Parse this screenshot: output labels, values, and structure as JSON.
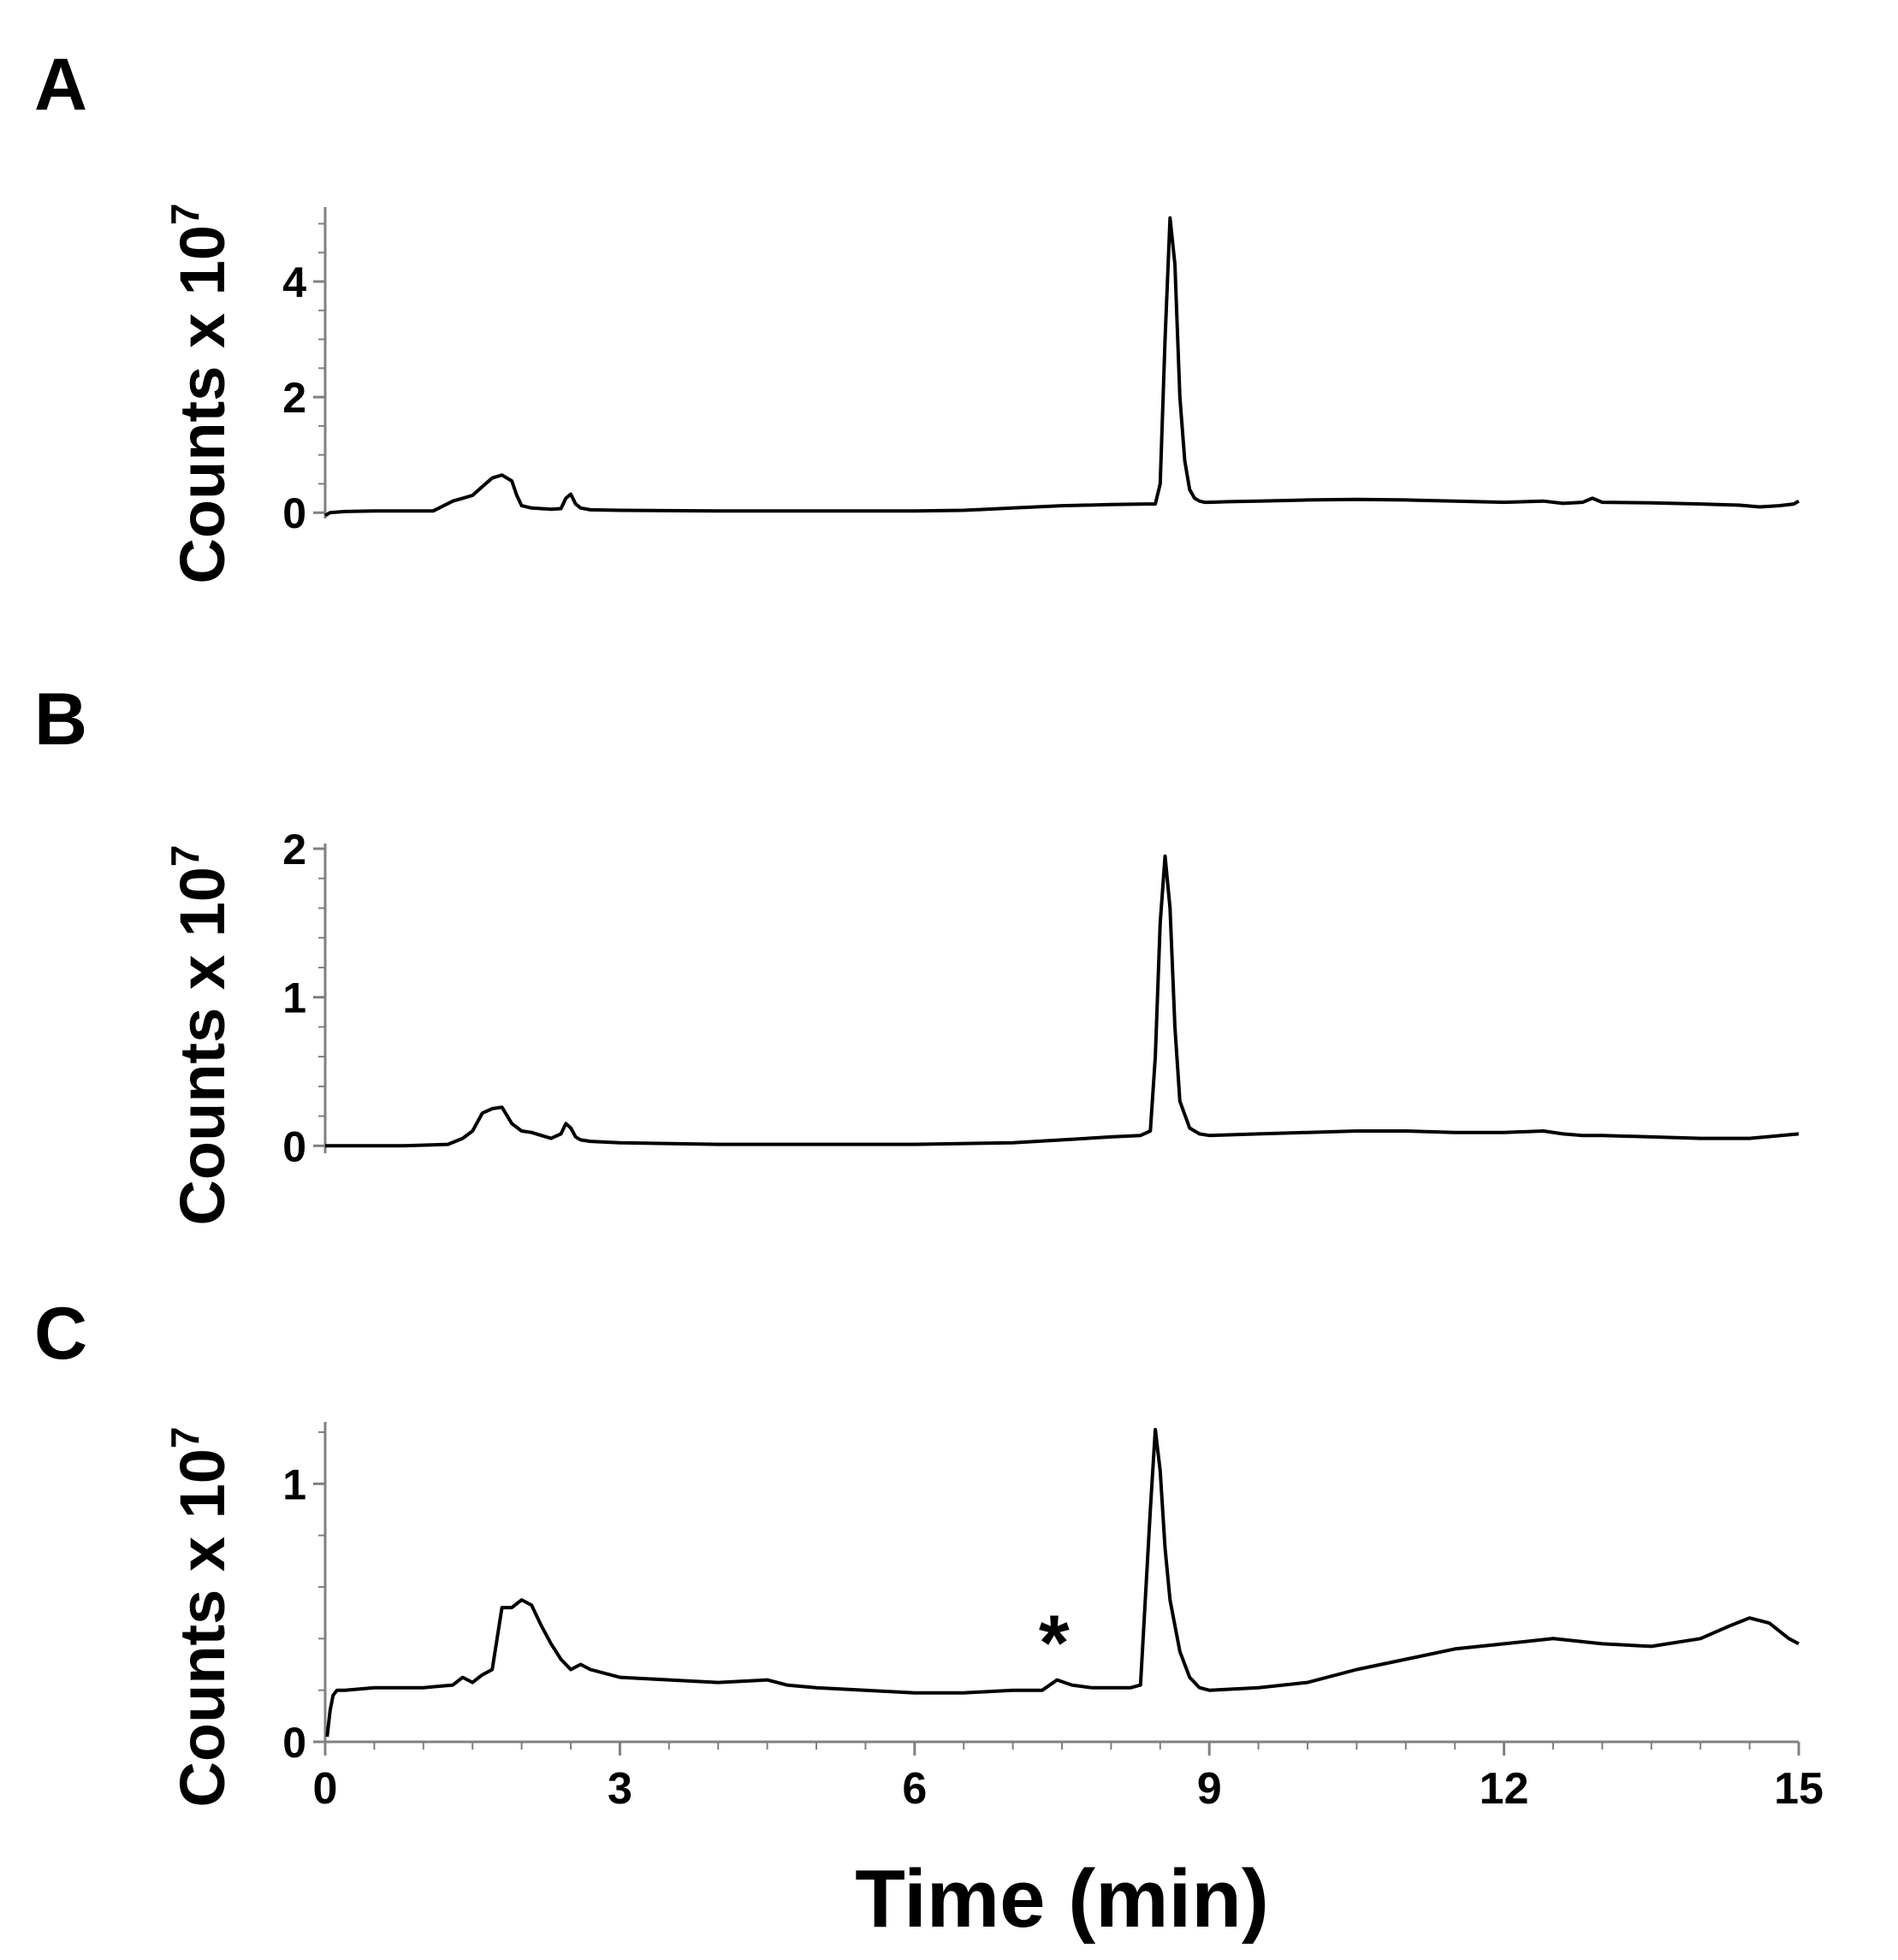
{
  "chart_data": [
    {
      "type": "line",
      "panel_label": "A",
      "ylabel": "Counts x 10",
      "ylabel_exponent": "7",
      "xlabel": "",
      "xlim": [
        0,
        15
      ],
      "ylim": [
        -0.1,
        5.2
      ],
      "yticks": [
        0,
        2,
        4
      ],
      "ytick_minor_step": 0.5,
      "xticks": [],
      "grid": false,
      "series": [
        {
          "x": [
            0,
            0.05,
            0.2,
            0.5,
            0.8,
            1.1,
            1.3,
            1.4,
            1.5,
            1.6,
            1.7,
            1.8,
            1.9,
            1.95,
            2.0,
            2.1,
            2.2,
            2.3,
            2.4,
            2.45,
            2.5,
            2.55,
            2.6,
            2.7,
            3.0,
            4.0,
            5.0,
            6.0,
            6.5,
            7.0,
            7.5,
            8.0,
            8.35,
            8.45,
            8.5,
            8.55,
            8.6,
            8.65,
            8.7,
            8.75,
            8.8,
            8.85,
            8.9,
            8.95,
            9.0,
            9.2,
            9.5,
            10.0,
            10.5,
            11.0,
            11.5,
            12.0,
            12.4,
            12.6,
            12.8,
            12.9,
            13.0,
            13.5,
            14.0,
            14.4,
            14.6,
            14.8,
            14.95,
            15.0
          ],
          "y": [
            -0.05,
            0.0,
            0.02,
            0.03,
            0.03,
            0.03,
            0.2,
            0.25,
            0.3,
            0.45,
            0.6,
            0.65,
            0.55,
            0.3,
            0.12,
            0.08,
            0.07,
            0.06,
            0.07,
            0.25,
            0.32,
            0.15,
            0.08,
            0.05,
            0.04,
            0.03,
            0.03,
            0.03,
            0.04,
            0.08,
            0.12,
            0.14,
            0.15,
            0.15,
            0.5,
            3.0,
            5.1,
            4.3,
            2.0,
            0.9,
            0.4,
            0.25,
            0.2,
            0.18,
            0.18,
            0.19,
            0.2,
            0.22,
            0.23,
            0.22,
            0.2,
            0.18,
            0.2,
            0.16,
            0.18,
            0.25,
            0.18,
            0.17,
            0.15,
            0.13,
            0.1,
            0.12,
            0.15,
            0.2
          ]
        }
      ]
    },
    {
      "type": "line",
      "panel_label": "B",
      "ylabel": "Counts x 10",
      "ylabel_exponent": "7",
      "xlabel": "",
      "xlim": [
        0,
        15
      ],
      "ylim": [
        -0.05,
        2.0
      ],
      "yticks": [
        0,
        1,
        2
      ],
      "ytick_minor_step": 0.2,
      "xticks": [],
      "grid": false,
      "series": [
        {
          "x": [
            0,
            0.3,
            0.8,
            1.25,
            1.4,
            1.5,
            1.6,
            1.7,
            1.8,
            1.9,
            2.0,
            2.1,
            2.2,
            2.3,
            2.4,
            2.45,
            2.5,
            2.55,
            2.6,
            2.7,
            3.0,
            4.0,
            5.0,
            6.0,
            7.0,
            7.5,
            8.0,
            8.3,
            8.4,
            8.45,
            8.5,
            8.55,
            8.6,
            8.65,
            8.7,
            8.8,
            8.9,
            9.0,
            9.5,
            10.0,
            10.5,
            11.0,
            11.5,
            12.0,
            12.4,
            12.6,
            12.8,
            13.0,
            13.5,
            14.0,
            14.5,
            15.0
          ],
          "y": [
            0.0,
            0.0,
            0.0,
            0.01,
            0.05,
            0.1,
            0.22,
            0.25,
            0.26,
            0.15,
            0.1,
            0.09,
            0.07,
            0.05,
            0.08,
            0.15,
            0.12,
            0.06,
            0.04,
            0.03,
            0.02,
            0.01,
            0.01,
            0.01,
            0.02,
            0.04,
            0.06,
            0.07,
            0.1,
            0.6,
            1.5,
            1.95,
            1.6,
            0.8,
            0.3,
            0.12,
            0.08,
            0.07,
            0.08,
            0.09,
            0.1,
            0.1,
            0.09,
            0.09,
            0.1,
            0.08,
            0.07,
            0.07,
            0.06,
            0.05,
            0.05,
            0.08
          ]
        }
      ]
    },
    {
      "type": "line",
      "panel_label": "C",
      "ylabel": "Counts x 10",
      "ylabel_exponent": "7",
      "xlabel": "Time (min)",
      "xlim": [
        0,
        15
      ],
      "ylim": [
        0,
        1.22
      ],
      "yticks": [
        0,
        1
      ],
      "ytick_minor_step": 0.2,
      "xticks": [
        0,
        3,
        6,
        9,
        12,
        15
      ],
      "xtick_minor_step": 0.5,
      "grid": false,
      "annotations": [
        {
          "text": "*",
          "x": 7.42,
          "y": 0.245
        }
      ],
      "series": [
        {
          "x": [
            0.02,
            0.05,
            0.08,
            0.12,
            0.2,
            0.5,
            1.0,
            1.3,
            1.4,
            1.5,
            1.6,
            1.7,
            1.75,
            1.8,
            1.9,
            2.0,
            2.1,
            2.2,
            2.3,
            2.4,
            2.5,
            2.6,
            2.7,
            3.0,
            3.5,
            4.0,
            4.5,
            4.7,
            5.0,
            5.5,
            6.0,
            6.5,
            7.0,
            7.3,
            7.45,
            7.6,
            7.8,
            8.0,
            8.2,
            8.3,
            8.4,
            8.45,
            8.5,
            8.55,
            8.6,
            8.7,
            8.8,
            8.9,
            9.0,
            9.5,
            10.0,
            10.5,
            11.0,
            11.5,
            12.0,
            12.5,
            13.0,
            13.5,
            14.0,
            14.3,
            14.5,
            14.7,
            14.9,
            15.0
          ],
          "y": [
            0.02,
            0.12,
            0.18,
            0.2,
            0.2,
            0.21,
            0.21,
            0.22,
            0.25,
            0.23,
            0.26,
            0.28,
            0.4,
            0.52,
            0.52,
            0.55,
            0.53,
            0.45,
            0.38,
            0.32,
            0.28,
            0.3,
            0.28,
            0.25,
            0.24,
            0.23,
            0.24,
            0.22,
            0.21,
            0.2,
            0.19,
            0.19,
            0.2,
            0.2,
            0.24,
            0.22,
            0.21,
            0.21,
            0.21,
            0.22,
            0.9,
            1.21,
            1.05,
            0.75,
            0.55,
            0.35,
            0.25,
            0.21,
            0.2,
            0.21,
            0.23,
            0.28,
            0.32,
            0.36,
            0.38,
            0.4,
            0.38,
            0.37,
            0.4,
            0.45,
            0.48,
            0.46,
            0.4,
            0.38
          ]
        }
      ]
    }
  ]
}
